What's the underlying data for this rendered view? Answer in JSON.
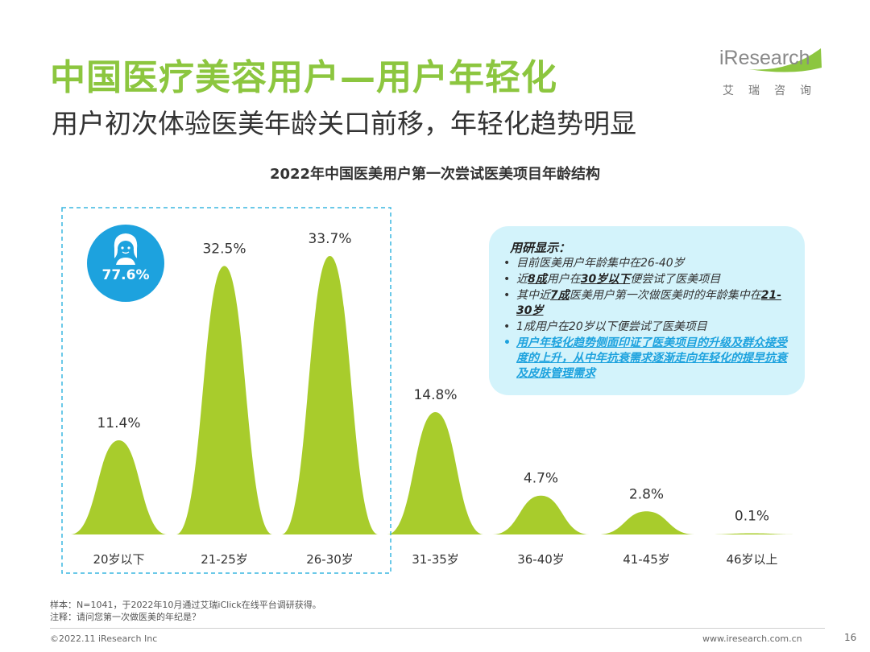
{
  "header": {
    "title": "中国医疗美容用户—用户年轻化",
    "subtitle": "用户初次体验医美年龄关口前移，年轻化趋势明显"
  },
  "logo": {
    "word": "iResearch",
    "cn": "艾瑞咨询"
  },
  "badge": {
    "icon": "user-face-icon",
    "value": "77.6%"
  },
  "chart_data": {
    "type": "area",
    "title": "2022年中国医美用户第一次尝试医美项目年龄结构",
    "categories": [
      "20岁以下",
      "21-25岁",
      "26-30岁",
      "31-35岁",
      "36-40岁",
      "41-45岁",
      "46岁以上"
    ],
    "values": [
      11.4,
      32.5,
      33.7,
      14.8,
      4.7,
      2.8,
      0.1
    ],
    "labels": [
      "11.4%",
      "32.5%",
      "33.7%",
      "14.8%",
      "4.7%",
      "2.8%",
      "0.1%"
    ],
    "ylim": [
      0,
      35
    ],
    "grid": false,
    "highlight_categories": [
      "20岁以下",
      "21-25岁",
      "26-30岁"
    ],
    "colors": {
      "peak": "#a8cc2c",
      "highlight_box": "#3ab7e0"
    }
  },
  "callout": {
    "heading": "用研显示：",
    "items": [
      {
        "parts": [
          {
            "t": "目前医美用户年龄集中在26-40岁"
          }
        ]
      },
      {
        "parts": [
          {
            "t": "近"
          },
          {
            "t": "8成",
            "b": true
          },
          {
            "t": "用户在"
          },
          {
            "t": "30岁以下",
            "b": true
          },
          {
            "t": "便尝试了医美项目"
          }
        ]
      },
      {
        "parts": [
          {
            "t": "其中近"
          },
          {
            "t": "7成",
            "b": true
          },
          {
            "t": "医美用户第一次做医美时的年龄集中在"
          },
          {
            "t": "21-30岁",
            "b": true
          }
        ]
      },
      {
        "parts": [
          {
            "t": "1成用户在20岁以下便尝试了医美项目"
          }
        ]
      },
      {
        "hl": true,
        "parts": [
          {
            "t": "用户年轻化趋势侧面印证了医美项目的升级及群众接受度的上升，从中年抗衰需求逐渐走向年轻化的提早抗衰及皮肤管理需求"
          }
        ]
      }
    ],
    "colors": {
      "bg": "#d3f3fb",
      "highlight": "#1da2de"
    }
  },
  "notes": {
    "sample": "样本：N=1041，于2022年10月通过艾瑞iClick在线平台调研获得。",
    "question": "注释：请问您第一次做医美的年纪是？"
  },
  "footer": {
    "copyright": "©2022.11 iResearch Inc",
    "website": "www.iresearch.com.cn",
    "page": "16"
  },
  "colors": {
    "title": "#8cc63f",
    "accent": "#1da2de"
  }
}
